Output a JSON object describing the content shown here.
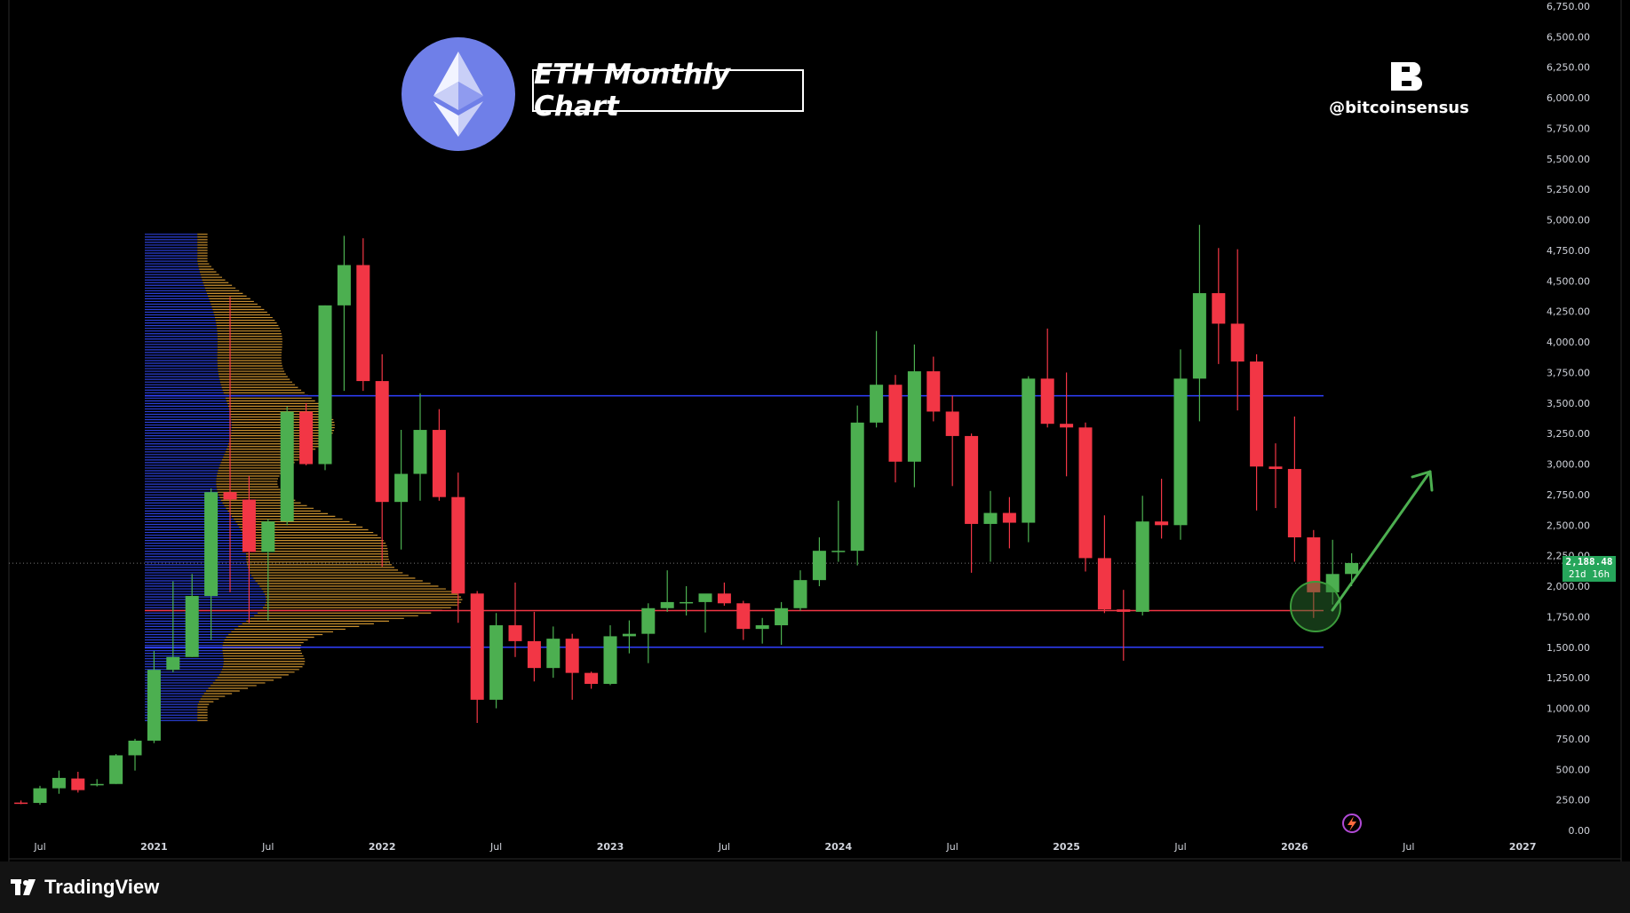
{
  "header": {
    "title": "ETH Monthly Chart",
    "handle": "@bitcoinsensus"
  },
  "footer": {
    "brand": "TradingView"
  },
  "price_label": {
    "price": "2,188.48",
    "countdown": "21d 16h"
  },
  "colors": {
    "up": "#4caf50",
    "down": "#f23645",
    "support_resistance": "#2f3fff",
    "key_level": "#f23645",
    "volume_profile_blue": "#2a3fd6",
    "volume_profile_orange": "#c9902e",
    "eth_logo_bg": "#6f7fe8",
    "circle": "#3b7d3b"
  },
  "icons": [
    "eth-logo-icon",
    "bitcoinsensus-logo-icon",
    "tradingview-logo-icon",
    "projection-arrow-icon",
    "lightning-icon"
  ],
  "chart_data": {
    "type": "candlestick",
    "title": "ETH Monthly Chart",
    "ylim": [
      0,
      6750
    ],
    "y_ticks": [
      "0.00",
      "250.00",
      "500.00",
      "750.00",
      "1,000.00",
      "1,250.00",
      "1,500.00",
      "1,750.00",
      "2,000.00",
      "2,250.00",
      "2,500.00",
      "2,750.00",
      "3,000.00",
      "3,250.00",
      "3,500.00",
      "3,750.00",
      "4,000.00",
      "4,250.00",
      "4,500.00",
      "4,750.00",
      "5,000.00",
      "5,250.00",
      "5,500.00",
      "5,750.00",
      "6,000.00",
      "6,250.00",
      "6,500.00",
      "6,750.00"
    ],
    "x_ticks": [
      {
        "label": "Jul",
        "t": 0
      },
      {
        "label": "2021",
        "t": 6
      },
      {
        "label": "Jul",
        "t": 12
      },
      {
        "label": "2022",
        "t": 18
      },
      {
        "label": "Jul",
        "t": 24
      },
      {
        "label": "2023",
        "t": 30
      },
      {
        "label": "Jul",
        "t": 36
      },
      {
        "label": "2024",
        "t": 42
      },
      {
        "label": "Jul",
        "t": 48
      },
      {
        "label": "2025",
        "t": 54
      },
      {
        "label": "Jul",
        "t": 60
      },
      {
        "label": "2026",
        "t": 66
      },
      {
        "label": "Jul",
        "t": 72
      },
      {
        "label": "2027",
        "t": 78
      }
    ],
    "horizontal_lines": [
      {
        "name": "resistance",
        "value": 3560,
        "color": "#2f3fff"
      },
      {
        "name": "key-level",
        "value": 1800,
        "color": "#f23645"
      },
      {
        "name": "support",
        "value": 1500,
        "color": "#2f3fff"
      }
    ],
    "current_price": 2188.48,
    "candles": [
      {
        "t": -1,
        "o": 228,
        "h": 245,
        "l": 215,
        "c": 225
      },
      {
        "t": 0,
        "o": 225,
        "h": 365,
        "l": 210,
        "c": 345
      },
      {
        "t": 1,
        "o": 345,
        "h": 490,
        "l": 300,
        "c": 430
      },
      {
        "t": 2,
        "o": 425,
        "h": 480,
        "l": 310,
        "c": 330
      },
      {
        "t": 3,
        "o": 370,
        "h": 420,
        "l": 360,
        "c": 380
      },
      {
        "t": 4,
        "o": 380,
        "h": 625,
        "l": 380,
        "c": 615
      },
      {
        "t": 5,
        "o": 615,
        "h": 750,
        "l": 490,
        "c": 735
      },
      {
        "t": 6,
        "o": 735,
        "h": 1470,
        "l": 715,
        "c": 1315
      },
      {
        "t": 7,
        "o": 1315,
        "h": 2040,
        "l": 1295,
        "c": 1420
      },
      {
        "t": 8,
        "o": 1420,
        "h": 2100,
        "l": 1420,
        "c": 1920
      },
      {
        "t": 9,
        "o": 1920,
        "h": 2800,
        "l": 1560,
        "c": 2770
      },
      {
        "t": 10,
        "o": 2770,
        "h": 4370,
        "l": 1950,
        "c": 2710
      },
      {
        "t": 11,
        "o": 2710,
        "h": 2900,
        "l": 1700,
        "c": 2280
      },
      {
        "t": 12,
        "o": 2280,
        "h": 2550,
        "l": 1720,
        "c": 2530
      },
      {
        "t": 13,
        "o": 2530,
        "h": 3470,
        "l": 2500,
        "c": 3430
      },
      {
        "t": 14,
        "o": 3430,
        "h": 3500,
        "l": 2990,
        "c": 3000
      },
      {
        "t": 15,
        "o": 3000,
        "h": 4300,
        "l": 2950,
        "c": 4300
      },
      {
        "t": 16,
        "o": 4300,
        "h": 4870,
        "l": 3600,
        "c": 4630
      },
      {
        "t": 17,
        "o": 4630,
        "h": 4850,
        "l": 3600,
        "c": 3680
      },
      {
        "t": 18,
        "o": 3680,
        "h": 3900,
        "l": 2160,
        "c": 2690
      },
      {
        "t": 19,
        "o": 2690,
        "h": 3280,
        "l": 2300,
        "c": 2920
      },
      {
        "t": 20,
        "o": 2920,
        "h": 3580,
        "l": 2700,
        "c": 3280
      },
      {
        "t": 21,
        "o": 3280,
        "h": 3450,
        "l": 2700,
        "c": 2730
      },
      {
        "t": 22,
        "o": 2730,
        "h": 2930,
        "l": 1700,
        "c": 1940
      },
      {
        "t": 23,
        "o": 1940,
        "h": 1960,
        "l": 880,
        "c": 1070
      },
      {
        "t": 24,
        "o": 1070,
        "h": 1780,
        "l": 1000,
        "c": 1680
      },
      {
        "t": 25,
        "o": 1680,
        "h": 2030,
        "l": 1420,
        "c": 1550
      },
      {
        "t": 26,
        "o": 1550,
        "h": 1790,
        "l": 1220,
        "c": 1330
      },
      {
        "t": 27,
        "o": 1330,
        "h": 1670,
        "l": 1250,
        "c": 1570
      },
      {
        "t": 28,
        "o": 1570,
        "h": 1610,
        "l": 1070,
        "c": 1290
      },
      {
        "t": 29,
        "o": 1290,
        "h": 1300,
        "l": 1160,
        "c": 1200
      },
      {
        "t": 30,
        "o": 1200,
        "h": 1680,
        "l": 1190,
        "c": 1590
      },
      {
        "t": 31,
        "o": 1590,
        "h": 1720,
        "l": 1450,
        "c": 1610
      },
      {
        "t": 32,
        "o": 1610,
        "h": 1860,
        "l": 1370,
        "c": 1820
      },
      {
        "t": 33,
        "o": 1820,
        "h": 2130,
        "l": 1790,
        "c": 1870
      },
      {
        "t": 34,
        "o": 1870,
        "h": 2000,
        "l": 1760,
        "c": 1870
      },
      {
        "t": 35,
        "o": 1870,
        "h": 1930,
        "l": 1620,
        "c": 1940
      },
      {
        "t": 36,
        "o": 1940,
        "h": 2030,
        "l": 1840,
        "c": 1860
      },
      {
        "t": 37,
        "o": 1860,
        "h": 1880,
        "l": 1560,
        "c": 1650
      },
      {
        "t": 38,
        "o": 1650,
        "h": 1740,
        "l": 1530,
        "c": 1680
      },
      {
        "t": 39,
        "o": 1680,
        "h": 1870,
        "l": 1520,
        "c": 1820
      },
      {
        "t": 40,
        "o": 1820,
        "h": 2130,
        "l": 1800,
        "c": 2050
      },
      {
        "t": 41,
        "o": 2050,
        "h": 2400,
        "l": 2000,
        "c": 2290
      },
      {
        "t": 42,
        "o": 2290,
        "h": 2700,
        "l": 2200,
        "c": 2290
      },
      {
        "t": 43,
        "o": 2290,
        "h": 3480,
        "l": 2170,
        "c": 3340
      },
      {
        "t": 44,
        "o": 3340,
        "h": 4090,
        "l": 3300,
        "c": 3650
      },
      {
        "t": 45,
        "o": 3650,
        "h": 3730,
        "l": 2850,
        "c": 3020
      },
      {
        "t": 46,
        "o": 3020,
        "h": 3980,
        "l": 2810,
        "c": 3760
      },
      {
        "t": 47,
        "o": 3760,
        "h": 3880,
        "l": 3350,
        "c": 3430
      },
      {
        "t": 48,
        "o": 3430,
        "h": 3560,
        "l": 2820,
        "c": 3230
      },
      {
        "t": 49,
        "o": 3230,
        "h": 3250,
        "l": 2110,
        "c": 2510
      },
      {
        "t": 50,
        "o": 2510,
        "h": 2780,
        "l": 2200,
        "c": 2600
      },
      {
        "t": 51,
        "o": 2600,
        "h": 2730,
        "l": 2310,
        "c": 2520
      },
      {
        "t": 52,
        "o": 2520,
        "h": 3720,
        "l": 2360,
        "c": 3700
      },
      {
        "t": 53,
        "o": 3700,
        "h": 4110,
        "l": 3300,
        "c": 3330
      },
      {
        "t": 54,
        "o": 3330,
        "h": 3750,
        "l": 2900,
        "c": 3300
      },
      {
        "t": 55,
        "o": 3300,
        "h": 3340,
        "l": 2120,
        "c": 2230
      },
      {
        "t": 56,
        "o": 2230,
        "h": 2580,
        "l": 1780,
        "c": 1810
      },
      {
        "t": 57,
        "o": 1810,
        "h": 1970,
        "l": 1390,
        "c": 1790
      },
      {
        "t": 58,
        "o": 1790,
        "h": 2740,
        "l": 1760,
        "c": 2530
      },
      {
        "t": 59,
        "o": 2530,
        "h": 2880,
        "l": 2390,
        "c": 2500
      },
      {
        "t": 60,
        "o": 2500,
        "h": 3940,
        "l": 2380,
        "c": 3700
      },
      {
        "t": 61,
        "o": 3700,
        "h": 4960,
        "l": 3350,
        "c": 4400
      },
      {
        "t": 62,
        "o": 4400,
        "h": 4770,
        "l": 3820,
        "c": 4150
      },
      {
        "t": 63,
        "o": 4150,
        "h": 4760,
        "l": 3440,
        "c": 3840
      },
      {
        "t": 64,
        "o": 3840,
        "h": 3900,
        "l": 2620,
        "c": 2980
      },
      {
        "t": 65,
        "o": 2980,
        "h": 3170,
        "l": 2640,
        "c": 2960
      },
      {
        "t": 66,
        "o": 2960,
        "h": 3390,
        "l": 2200,
        "c": 2400
      },
      {
        "t": 67,
        "o": 2400,
        "h": 2460,
        "l": 1740,
        "c": 1950
      },
      {
        "t": 68,
        "o": 1950,
        "h": 2380,
        "l": 1850,
        "c": 2100
      },
      {
        "t": 69,
        "o": 2100,
        "h": 2270,
        "l": 2000,
        "c": 2190
      }
    ]
  }
}
